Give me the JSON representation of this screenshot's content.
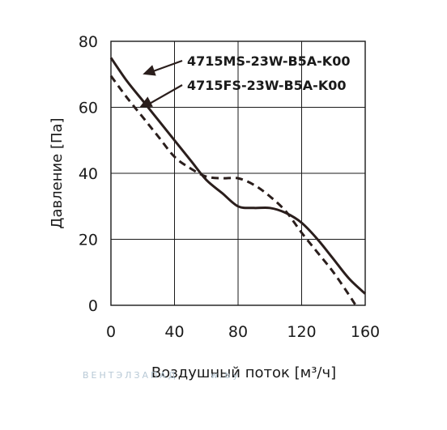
{
  "chart_data": {
    "type": "line",
    "xlabel": "Воздушный поток [м³/ч]",
    "ylabel": "Давление [Па]",
    "xlim": [
      0,
      160
    ],
    "ylim": [
      0,
      80
    ],
    "xticks": [
      "0",
      "40",
      "80",
      "120",
      "160"
    ],
    "yticks": [
      "0",
      "20",
      "40",
      "60",
      "80"
    ],
    "grid": true,
    "series": [
      {
        "name": "4715MS-23W-B5A-K00",
        "style": "solid",
        "x": [
          0,
          10,
          20,
          30,
          40,
          50,
          60,
          70,
          80,
          90,
          100,
          110,
          120,
          130,
          140,
          150,
          160
        ],
        "y": [
          75,
          68,
          62,
          56,
          50,
          44,
          38,
          34,
          30,
          29.5,
          29.5,
          28,
          25,
          20,
          14,
          8,
          3.5
        ]
      },
      {
        "name": "4715FS-23W-B5A-K00",
        "style": "dashed",
        "x": [
          0,
          10,
          20,
          30,
          40,
          50,
          60,
          70,
          80,
          90,
          100,
          110,
          120,
          130,
          140,
          150,
          154
        ],
        "y": [
          69.5,
          63,
          57,
          51,
          45,
          41.5,
          39,
          38.5,
          38.5,
          36.5,
          33,
          28.5,
          22,
          16,
          10,
          3,
          0
        ]
      }
    ],
    "legend": [
      {
        "label": "4715MS-23W-B5A-K00",
        "arrow_to_x": 20,
        "arrow_to_y": 70
      },
      {
        "label": "4715FS-23W-B5A-K00",
        "arrow_to_x": 18,
        "arrow_to_y": 60
      }
    ]
  },
  "watermark": {
    "text_left": "ВЕНТЭЛЗАПАД",
    "text_right": "w.by"
  },
  "colors": {
    "line": "#2a1e1c",
    "grid": "#1a1a1a",
    "watermark": "#b8c9d6"
  }
}
